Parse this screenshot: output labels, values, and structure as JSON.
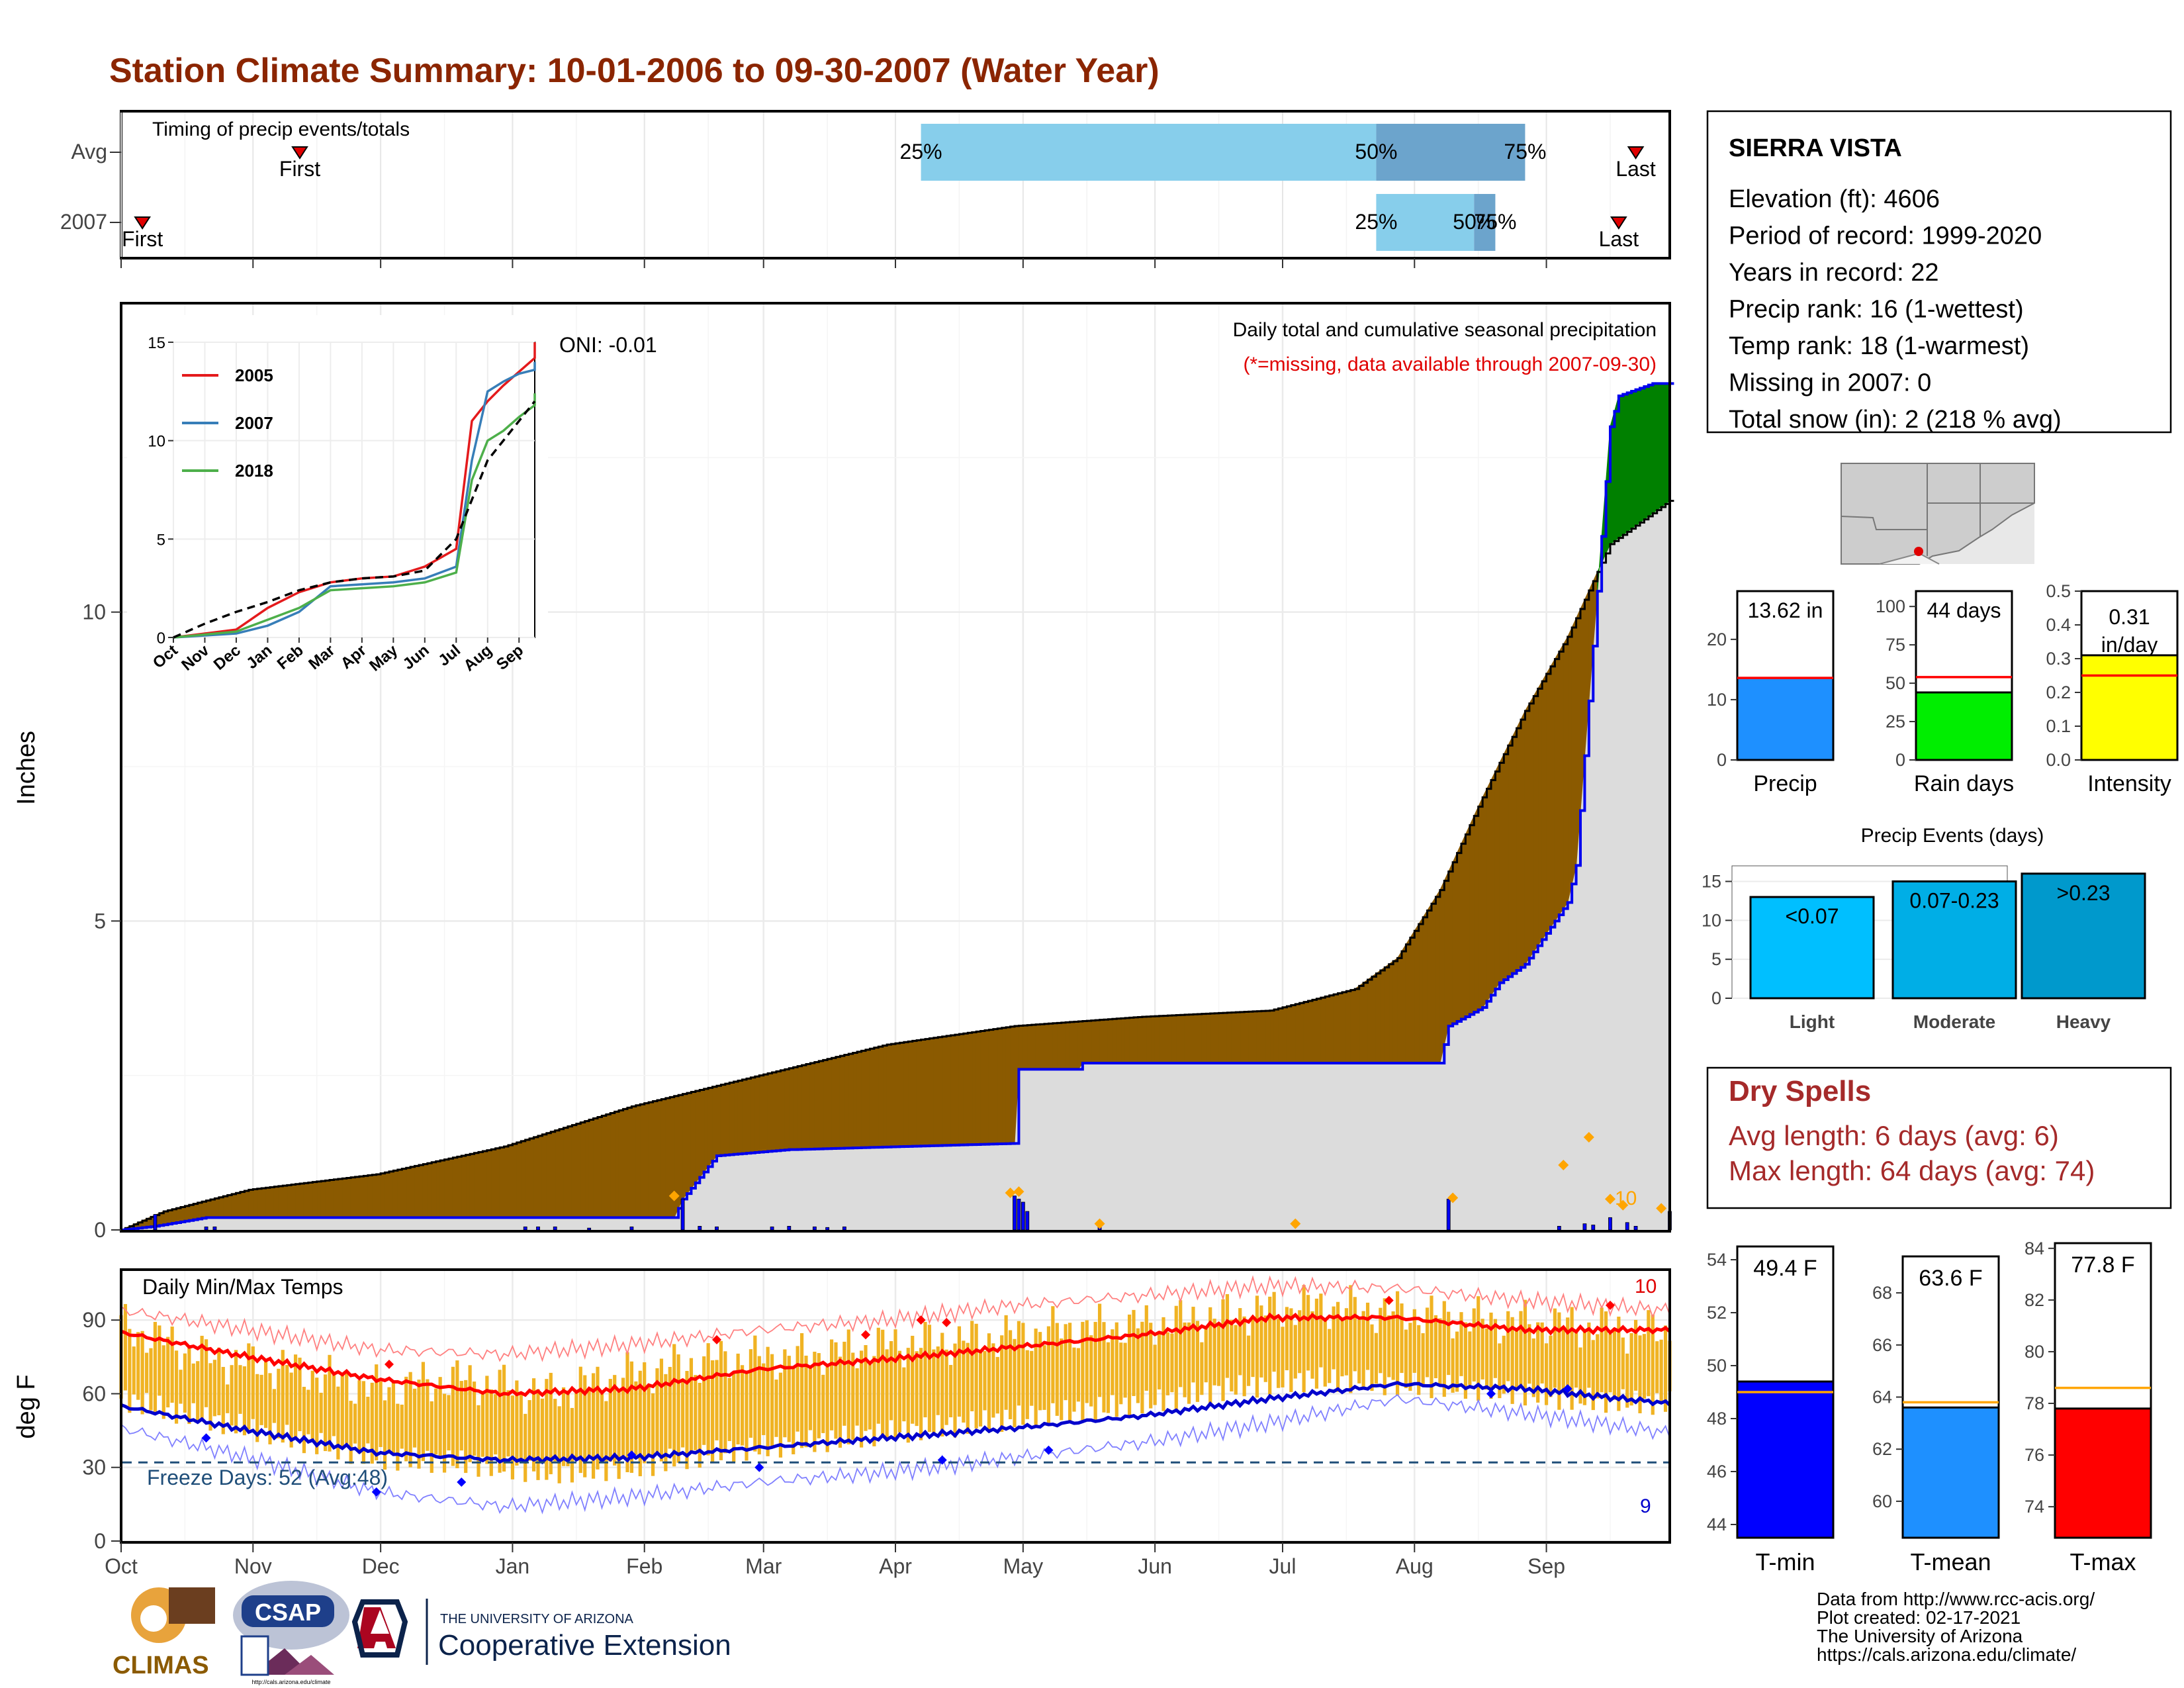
{
  "title": "Station Climate Summary: 10-01-2006 to 09-30-2007 (Water Year)",
  "months": [
    "Oct",
    "Nov",
    "Dec",
    "Jan",
    "Feb",
    "Mar",
    "Apr",
    "May",
    "Jun",
    "Jul",
    "Aug",
    "Sep"
  ],
  "timing": {
    "label": "Timing of precip events/totals",
    "rows": [
      {
        "name": "Avg",
        "first_day": 42,
        "last_day": 356,
        "q25": 188,
        "q50": 295,
        "q75": 330,
        "first_label": "First",
        "last_label": "Last",
        "q25_label": "25%",
        "q50_label": "50%",
        "q75_label": "75%"
      },
      {
        "name": "2007",
        "first_day": 5,
        "last_day": 352,
        "q25": 295,
        "q50": 318,
        "q75": 323,
        "first_label": "First",
        "last_label": "Last",
        "q25_label": "25%",
        "q50_label": "50%",
        "q75_label": "75%"
      }
    ]
  },
  "station": {
    "name": "SIERRA VISTA",
    "lines": [
      "Elevation (ft): 4606",
      "Period of record: 1999-2020",
      "Years in record: 22",
      "Precip rank: 16 (1-wettest)",
      "Temp rank: 18 (1-warmest)",
      "Missing in 2007: 0",
      "Total snow (in): 2 (218 % avg)"
    ]
  },
  "precip": {
    "ylabel": "Inches",
    "note1": "Daily total and cumulative seasonal precipitation",
    "note2": "(*=missing, data available through 2007-09-30)",
    "oni": "ONI: -0.01",
    "corner": "10",
    "yticks": [
      0,
      5,
      10
    ],
    "ylim": [
      0,
      15
    ]
  },
  "colors": {
    "title": "#8b2500",
    "wet": "#008000",
    "dry": "#8b5a00",
    "normal": "#dcdcdc",
    "obs": "#0000ee",
    "dry_spell": "#a52a2a"
  },
  "chart_data": [
    {
      "type": "area",
      "name": "cumulative-precipitation",
      "x_unit": "day of water year (Oct 1 = 0)",
      "series": [
        {
          "name": "2007 cumulative",
          "x": [
            0,
            8,
            20,
            130,
            132,
            140,
            157,
            158,
            210,
            211,
            225,
            226,
            260,
            310,
            312,
            320,
            324,
            330,
            340,
            342,
            350,
            352,
            360,
            364
          ],
          "values": [
            0,
            0.06,
            0.2,
            0.2,
            0.5,
            1.2,
            1.3,
            1.3,
            1.4,
            2.6,
            2.6,
            2.7,
            2.7,
            2.7,
            3.3,
            3.6,
            4.0,
            4.3,
            5.3,
            5.9,
            13.0,
            13.5,
            13.7,
            13.7
          ]
        },
        {
          "name": "Average cumulative",
          "x": [
            0,
            10,
            30,
            60,
            90,
            120,
            150,
            180,
            210,
            240,
            270,
            290,
            300,
            310,
            320,
            330,
            340,
            350,
            364
          ],
          "values": [
            0,
            0.3,
            0.65,
            0.9,
            1.35,
            2.0,
            2.5,
            3.0,
            3.3,
            3.45,
            3.55,
            3.9,
            4.4,
            5.5,
            7.0,
            8.4,
            9.6,
            11.1,
            11.8
          ]
        }
      ]
    },
    {
      "type": "bar",
      "name": "daily-precipitation",
      "x": [
        8,
        20,
        22,
        95,
        98,
        102,
        110,
        120,
        132,
        136,
        140,
        153,
        157,
        163,
        166,
        170,
        210,
        211,
        212,
        213,
        230,
        312,
        338,
        344,
        346,
        350,
        354,
        356,
        364
      ],
      "values": [
        0.25,
        0.05,
        0.05,
        0.05,
        0.05,
        0.05,
        0.03,
        0.05,
        0.5,
        0.06,
        0.05,
        0.05,
        0.06,
        0.05,
        0.04,
        0.05,
        0.55,
        0.5,
        0.45,
        0.3,
        0.05,
        0.5,
        0.06,
        0.1,
        0.08,
        0.2,
        0.12,
        0.06,
        0.3
      ]
    },
    {
      "type": "line",
      "name": "inset-cumulative",
      "xticks": [
        "Oct",
        "Nov",
        "Dec",
        "Jan",
        "Feb",
        "Mar",
        "Apr",
        "May",
        "Jun",
        "Jul",
        "Aug",
        "Sep"
      ],
      "yticks": [
        0,
        5,
        10,
        15
      ],
      "ylim": [
        0,
        15
      ],
      "series": [
        {
          "name": "2005",
          "color": "#e41a1c",
          "x": [
            0,
            2,
            3,
            4,
            5,
            6,
            7,
            8,
            9,
            9.5,
            10,
            10.5,
            11,
            11.5,
            12
          ],
          "values": [
            0,
            0.4,
            1.5,
            2.3,
            2.8,
            3.0,
            3.1,
            3.6,
            4.5,
            11.0,
            12.0,
            12.8,
            13.5,
            14.2,
            15.0
          ]
        },
        {
          "name": "2007",
          "color": "#377eb8",
          "x": [
            0,
            2,
            3,
            4,
            5,
            6,
            7,
            8,
            9,
            9.5,
            10,
            10.5,
            11,
            11.5,
            12
          ],
          "values": [
            0,
            0.2,
            0.6,
            1.3,
            2.6,
            2.7,
            2.8,
            3.0,
            3.6,
            9.0,
            12.5,
            13.0,
            13.4,
            13.6,
            14.0
          ]
        },
        {
          "name": "2018",
          "color": "#4daf4a",
          "x": [
            0,
            2,
            3,
            4,
            5,
            6,
            7,
            8,
            9,
            9.5,
            10,
            10.5,
            11,
            11.5,
            12
          ],
          "values": [
            0,
            0.3,
            0.9,
            1.5,
            2.4,
            2.5,
            2.6,
            2.8,
            3.3,
            8.0,
            10.0,
            10.5,
            11.2,
            11.8,
            12.4
          ]
        },
        {
          "name": "Avg",
          "color": "#000000",
          "x": [
            0,
            1,
            2,
            3,
            4,
            5,
            6,
            7,
            8,
            9,
            10,
            11,
            12
          ],
          "values": [
            0,
            0.7,
            1.3,
            1.8,
            2.4,
            2.8,
            3.0,
            3.1,
            3.4,
            5.0,
            9.0,
            11.0,
            12.0
          ]
        }
      ]
    },
    {
      "type": "line",
      "name": "daily-temperatures",
      "title": "Daily Min/Max Temps",
      "ylabel": "deg F",
      "yticks": [
        0,
        30,
        60,
        90
      ],
      "ylim": [
        0,
        110
      ],
      "freeze_line": 32,
      "freeze_label": "Freeze Days: 52 (Avg:48)",
      "top_count": "10",
      "bottom_count": "9",
      "avg_max": {
        "x": [
          0,
          30,
          60,
          90,
          120,
          150,
          180,
          210,
          240,
          270,
          300,
          330,
          364
        ],
        "values": [
          85,
          75,
          66,
          60,
          62,
          70,
          74,
          79,
          84,
          91,
          91,
          86,
          86
        ]
      },
      "avg_min": {
        "x": [
          0,
          30,
          60,
          90,
          120,
          150,
          180,
          210,
          240,
          270,
          300,
          330,
          364
        ],
        "values": [
          55,
          45,
          36,
          33,
          34,
          38,
          42,
          46,
          51,
          58,
          64,
          62,
          56
        ]
      },
      "record_max": {
        "x": [
          0,
          30,
          60,
          90,
          120,
          150,
          180,
          210,
          240,
          270,
          300,
          330,
          364
        ],
        "values": [
          94,
          86,
          78,
          76,
          80,
          86,
          90,
          96,
          100,
          104,
          103,
          98,
          94
        ]
      },
      "record_min": {
        "x": [
          0,
          30,
          60,
          90,
          120,
          150,
          180,
          210,
          240,
          270,
          300,
          330,
          364
        ],
        "values": [
          46,
          34,
          20,
          14,
          18,
          24,
          28,
          34,
          40,
          48,
          58,
          52,
          44
        ]
      },
      "obs_max": {
        "x": [
          0,
          20,
          40,
          60,
          80,
          100,
          120,
          140,
          160,
          180,
          200,
          220,
          240,
          260,
          280,
          300,
          320,
          340,
          364
        ],
        "values": [
          88,
          75,
          70,
          62,
          66,
          60,
          68,
          74,
          75,
          80,
          82,
          86,
          88,
          92,
          96,
          93,
          90,
          88,
          85
        ]
      },
      "obs_min": {
        "x": [
          0,
          20,
          40,
          60,
          80,
          100,
          120,
          140,
          160,
          180,
          200,
          220,
          240,
          260,
          280,
          300,
          320,
          340,
          364
        ],
        "values": [
          58,
          50,
          42,
          34,
          32,
          28,
          30,
          36,
          40,
          44,
          48,
          52,
          56,
          62,
          66,
          64,
          62,
          58,
          56
        ]
      }
    },
    {
      "type": "bar",
      "name": "summary-precip",
      "categories": [
        "Precip"
      ],
      "values": [
        13.62
      ],
      "average": 13.6,
      "label": "13.62 in",
      "yticks": [
        0,
        10,
        20
      ],
      "ylim": [
        0,
        28
      ]
    },
    {
      "type": "bar",
      "name": "summary-rain-days",
      "categories": [
        "Rain days"
      ],
      "values": [
        44
      ],
      "average": 54,
      "label": "44 days",
      "yticks": [
        0,
        25,
        50,
        75,
        100
      ],
      "ylim": [
        0,
        110
      ]
    },
    {
      "type": "bar",
      "name": "summary-intensity",
      "categories": [
        "Intensity"
      ],
      "values": [
        0.31
      ],
      "average": 0.25,
      "label_value": "0.31",
      "label_unit": "in/day",
      "yticks": [
        0.0,
        0.1,
        0.2,
        0.3,
        0.4,
        0.5
      ],
      "ylim": [
        0,
        0.5
      ]
    },
    {
      "type": "bar",
      "name": "precip-events",
      "title": "Precip Events (days)",
      "categories": [
        "Light",
        "Moderate",
        "Heavy"
      ],
      "bar_labels": [
        "<0.07",
        "0.07-0.23",
        ">0.23"
      ],
      "values": [
        13,
        15,
        16
      ],
      "yticks": [
        0,
        5,
        10,
        15
      ],
      "ylim": [
        0,
        17
      ]
    },
    {
      "type": "bar",
      "name": "summary-temps",
      "categories": [
        "T-min",
        "T-mean",
        "T-max"
      ],
      "labels": [
        "49.4 F",
        "63.6 F",
        "77.8 F"
      ],
      "values": [
        49.4,
        63.6,
        77.8
      ],
      "averages": [
        49.0,
        63.8,
        78.6
      ],
      "panels": [
        {
          "yticks": [
            44,
            46,
            48,
            50,
            52,
            54
          ],
          "ylim": [
            43.5,
            54.5
          ]
        },
        {
          "yticks": [
            60,
            62,
            64,
            66,
            68
          ],
          "ylim": [
            58.6,
            69.4
          ]
        },
        {
          "yticks": [
            74,
            76,
            78,
            80,
            82,
            84
          ],
          "ylim": [
            72.8,
            84.2
          ]
        }
      ]
    }
  ],
  "dry_spells": {
    "title": "Dry Spells",
    "lines": [
      "Avg length: 6 days (avg: 6)",
      "Max length: 64 days (avg: 74)"
    ]
  },
  "footer": {
    "lines": [
      "Data from http://www.rcc-acis.org/",
      "Plot created: 02-17-2021",
      "The University of Arizona",
      "https://cals.arizona.edu/climate/"
    ]
  },
  "logos": {
    "climas": "CLIMAS",
    "csap": "CSAP",
    "csap_url": "http://cals.arizona.edu/climate",
    "ua_small": "THE UNIVERSITY OF ARIZONA",
    "ua_big": "Cooperative Extension"
  }
}
